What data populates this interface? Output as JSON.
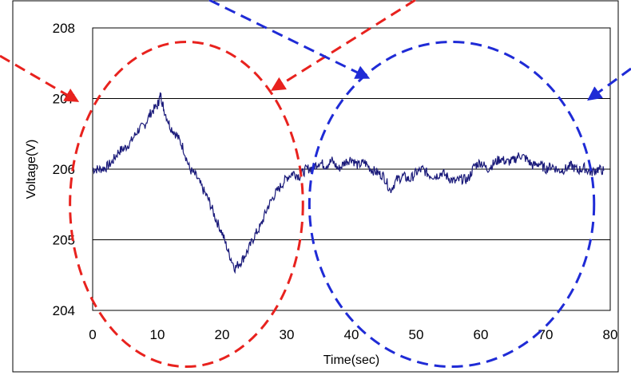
{
  "chart_data": {
    "type": "line",
    "title": "",
    "xlabel": "Time(sec)",
    "ylabel": "Voltage(V)",
    "xlim": [
      0,
      80
    ],
    "ylim": [
      204,
      208
    ],
    "x_ticks": [
      "0",
      "10",
      "20",
      "30",
      "40",
      "50",
      "60",
      "70",
      "80"
    ],
    "y_ticks": [
      "204",
      "205",
      "206",
      "207",
      "208"
    ],
    "grid": "horizontal",
    "series": [
      {
        "color": "#1a1a7a",
        "points": [
          [
            0,
            206.0
          ],
          [
            1,
            206.0
          ],
          [
            2,
            206.02
          ],
          [
            3,
            206.1
          ],
          [
            4,
            206.25
          ],
          [
            5,
            206.3
          ],
          [
            6,
            206.4
          ],
          [
            7,
            206.55
          ],
          [
            8,
            206.62
          ],
          [
            9,
            206.8
          ],
          [
            10,
            206.9
          ],
          [
            10.5,
            207.05
          ],
          [
            11,
            206.85
          ],
          [
            12,
            206.6
          ],
          [
            13,
            206.48
          ],
          [
            14,
            206.3
          ],
          [
            15,
            206.0
          ],
          [
            16,
            205.9
          ],
          [
            17,
            205.72
          ],
          [
            18,
            205.55
          ],
          [
            19,
            205.3
          ],
          [
            20,
            205.1
          ],
          [
            21,
            204.82
          ],
          [
            22,
            204.6
          ],
          [
            23,
            204.7
          ],
          [
            24,
            204.85
          ],
          [
            25,
            205.05
          ],
          [
            26,
            205.2
          ],
          [
            27,
            205.45
          ],
          [
            28,
            205.62
          ],
          [
            29,
            205.75
          ],
          [
            30,
            205.88
          ],
          [
            31,
            205.95
          ],
          [
            32,
            205.9
          ],
          [
            33,
            206.0
          ],
          [
            34,
            206.02
          ],
          [
            35,
            206.1
          ],
          [
            36,
            206.05
          ],
          [
            37,
            206.12
          ],
          [
            38,
            206.0
          ],
          [
            39,
            206.1
          ],
          [
            40,
            206.15
          ],
          [
            41,
            206.05
          ],
          [
            42,
            206.1
          ],
          [
            43,
            206.0
          ],
          [
            44,
            205.95
          ],
          [
            45,
            205.9
          ],
          [
            46,
            205.7
          ],
          [
            47,
            205.85
          ],
          [
            48,
            205.9
          ],
          [
            49,
            205.85
          ],
          [
            50,
            205.95
          ],
          [
            51,
            206.0
          ],
          [
            52,
            205.92
          ],
          [
            53,
            205.9
          ],
          [
            54,
            205.95
          ],
          [
            55,
            205.88
          ],
          [
            56,
            205.82
          ],
          [
            57,
            205.86
          ],
          [
            58,
            205.85
          ],
          [
            59,
            206.05
          ],
          [
            60,
            206.1
          ],
          [
            61,
            206.0
          ],
          [
            62,
            206.08
          ],
          [
            63,
            206.15
          ],
          [
            64,
            206.1
          ],
          [
            65,
            206.12
          ],
          [
            66,
            206.2
          ],
          [
            67,
            206.15
          ],
          [
            68,
            206.05
          ],
          [
            69,
            206.08
          ],
          [
            70,
            206.0
          ],
          [
            71,
            206.05
          ],
          [
            72,
            205.98
          ],
          [
            73,
            206.0
          ],
          [
            74,
            206.05
          ],
          [
            75,
            205.98
          ],
          [
            76,
            206.02
          ],
          [
            77,
            205.95
          ],
          [
            78,
            206.0
          ],
          [
            79,
            205.98
          ]
        ]
      }
    ],
    "annotations": [
      {
        "shape": "dashed-ellipse",
        "color": "#e8221e",
        "center_data": [
          14.5,
          206.0
        ],
        "rx_data": 18,
        "ry_data": 4.6
      },
      {
        "shape": "dashed-ellipse",
        "color": "#1f2bd6",
        "center_data": [
          55.5,
          206.0
        ],
        "rx_data": 22,
        "ry_data": 4.6
      },
      {
        "shape": "dashed-arrow",
        "color": "#e8221e",
        "direction": "from upper-left into left edge of red ellipse"
      },
      {
        "shape": "dashed-arrow",
        "color": "#e8221e",
        "direction": "from top toward right edge of red ellipse"
      },
      {
        "shape": "dashed-arrow",
        "color": "#1f2bd6",
        "direction": "from top-left toward left edge of blue ellipse"
      },
      {
        "shape": "dashed-arrow",
        "color": "#1f2bd6",
        "direction": "from upper-right into right edge of blue ellipse"
      }
    ]
  }
}
